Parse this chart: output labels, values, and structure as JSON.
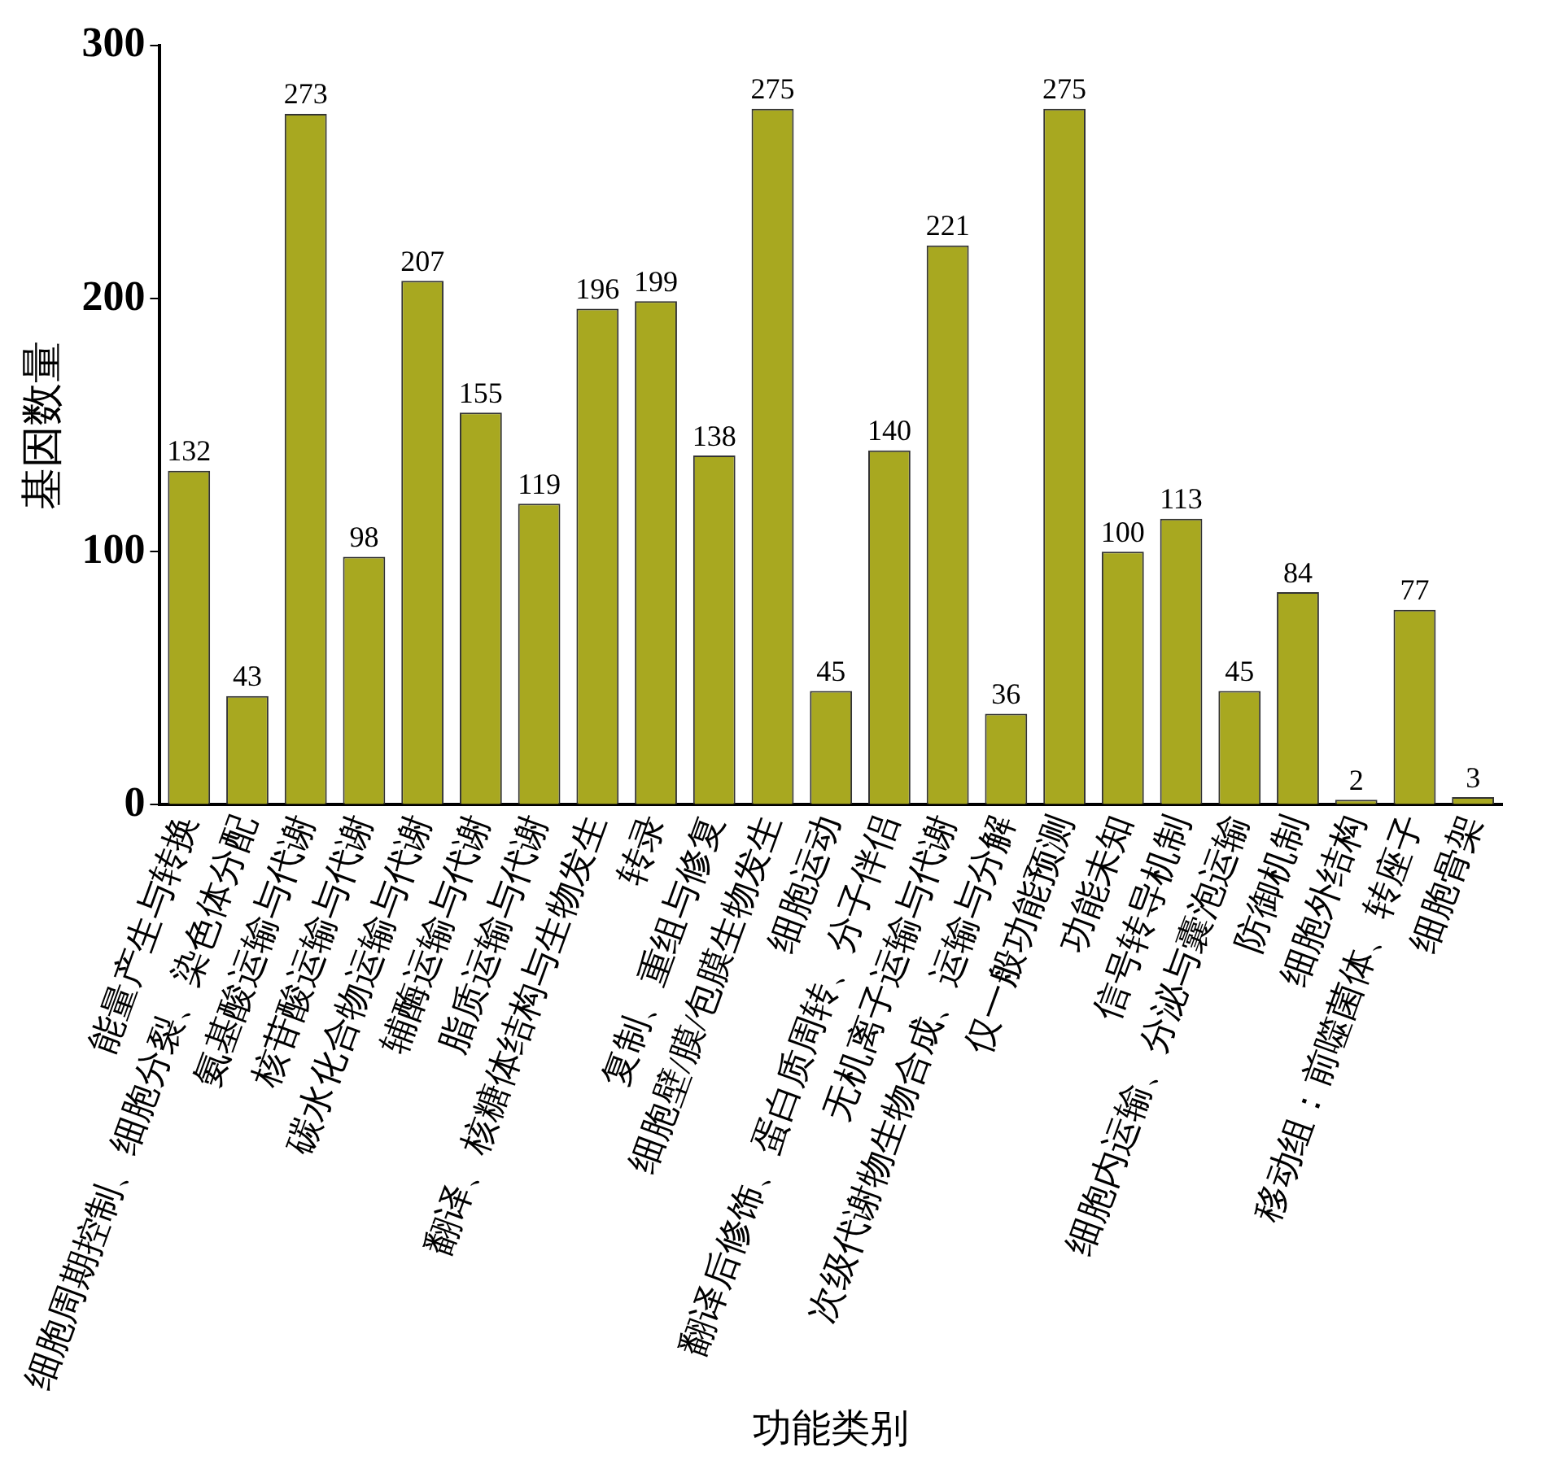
{
  "chart_data": {
    "type": "bar",
    "xlabel": "功能类别",
    "ylabel": "基因数量",
    "categories": [
      "能量产生与转换",
      "细胞周期控制、细胞分裂、染色体分配",
      "氨基酸运输与代谢",
      "核苷酸运输与代谢",
      "碳水化合物运输与代谢",
      "辅酶运输与代谢",
      "脂质运输与代谢",
      "翻译、核糖体结构与生物发生",
      "转录",
      "复制、重组与修复",
      "细胞壁/膜/包膜生物发生",
      "细胞运动",
      "翻译后修饰、蛋白质周转、分子伴侣",
      "无机离子运输与代谢",
      "次级代谢物生物合成、运输与分解",
      "仅一般功能预测",
      "功能未知",
      "信号转导机制",
      "细胞内运输、分泌与囊泡运输",
      "防御机制",
      "细胞外结构",
      "移动组：前噬菌体、转座子",
      "细胞骨架"
    ],
    "values": [
      132,
      43,
      273,
      98,
      207,
      155,
      119,
      196,
      199,
      138,
      275,
      45,
      140,
      221,
      36,
      275,
      100,
      113,
      45,
      84,
      2,
      77,
      3
    ],
    "color": "#a8a820",
    "ylim": [
      0,
      300
    ],
    "yticks": [
      0,
      100,
      200,
      300
    ],
    "grid": false,
    "legend": false,
    "data_labels": true
  }
}
